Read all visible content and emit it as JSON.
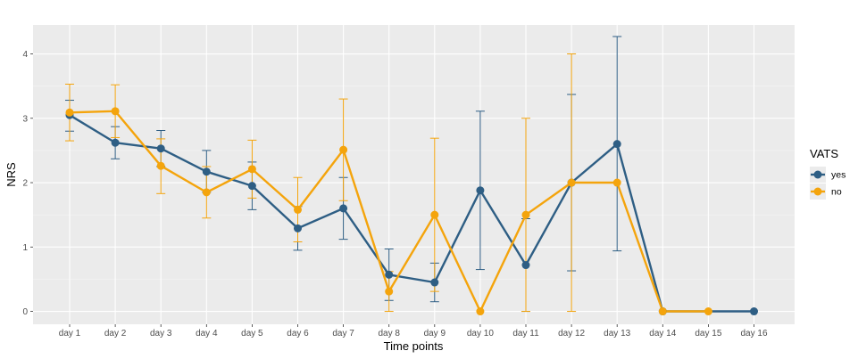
{
  "chart_data": {
    "type": "line",
    "title": "",
    "xlabel": "Time points",
    "ylabel": "NRS",
    "categories": [
      "day 1",
      "day 2",
      "day 3",
      "day 4",
      "day 5",
      "day 6",
      "day 7",
      "day 8",
      "day 9",
      "day 10",
      "day 11",
      "day 12",
      "day 13",
      "day 14",
      "day 15",
      "day 16"
    ],
    "yticks": [
      0,
      1,
      2,
      3,
      4
    ],
    "ylim": [
      -0.2,
      4.45
    ],
    "grid": true,
    "legend": {
      "title": "VATS",
      "position": "right"
    },
    "series": [
      {
        "name": "yes",
        "color": "#2e5e84",
        "values": [
          3.05,
          2.62,
          2.53,
          2.17,
          1.95,
          1.29,
          1.6,
          0.57,
          0.45,
          1.88,
          0.72,
          2.0,
          2.6,
          0.0,
          null,
          0.0
        ],
        "error_low": [
          2.8,
          2.37,
          2.25,
          1.85,
          1.58,
          0.95,
          1.12,
          0.17,
          0.15,
          0.65,
          0.0,
          0.63,
          0.94,
          null,
          null,
          null
        ],
        "error_high": [
          3.28,
          2.87,
          2.81,
          2.5,
          2.32,
          1.63,
          2.08,
          0.97,
          0.75,
          3.11,
          1.44,
          3.37,
          4.27,
          null,
          null,
          null
        ]
      },
      {
        "name": "no",
        "color": "#f4a40c",
        "values": [
          3.09,
          3.11,
          2.26,
          1.85,
          2.21,
          1.58,
          2.51,
          0.31,
          1.5,
          0.0,
          1.5,
          2.0,
          2.0,
          0.0,
          0.0,
          null
        ],
        "error_low": [
          2.65,
          2.7,
          1.83,
          1.45,
          1.76,
          1.08,
          1.72,
          0.0,
          0.31,
          null,
          0.0,
          0.0,
          null,
          null,
          null,
          null
        ],
        "error_high": [
          3.53,
          3.52,
          2.68,
          2.25,
          2.66,
          2.08,
          3.3,
          0.62,
          2.69,
          null,
          3.0,
          4.0,
          null,
          null,
          null,
          null
        ]
      }
    ]
  }
}
